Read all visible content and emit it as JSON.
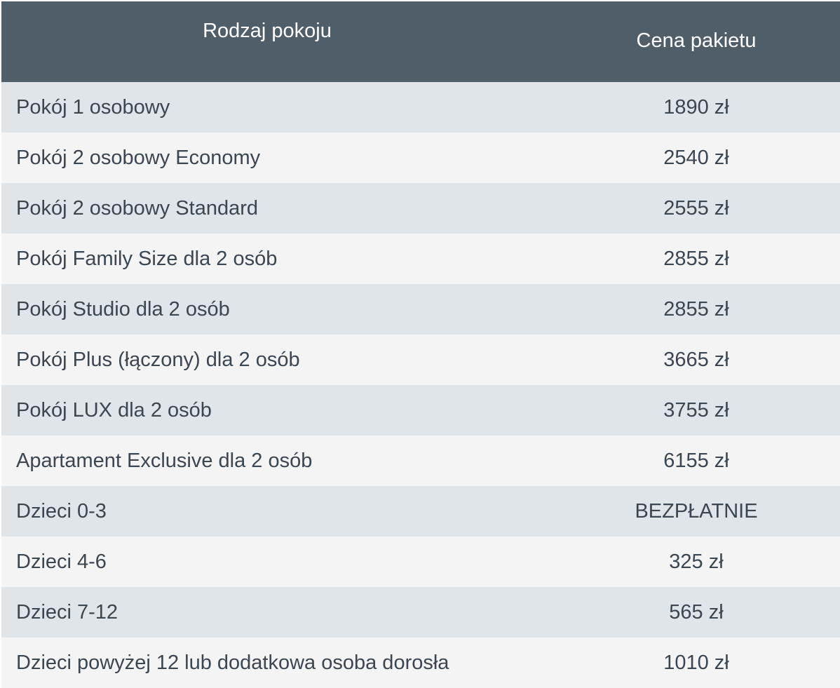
{
  "table": {
    "headers": {
      "room_type": "Rodzaj pokoju",
      "package_price": "Cena pakietu"
    },
    "rows": [
      {
        "name": "Pokój 1 osobowy",
        "price": "1890 zł"
      },
      {
        "name": "Pokój 2 osobowy Economy",
        "price": "2540 zł"
      },
      {
        "name": "Pokój 2 osobowy Standard",
        "price": "2555 zł"
      },
      {
        "name": "Pokój Family Size dla 2 osób",
        "price": "2855 zł"
      },
      {
        "name": "Pokój Studio dla 2 osób",
        "price": "2855 zł"
      },
      {
        "name": "Pokój Plus (łączony) dla 2 osób",
        "price": "3665 zł"
      },
      {
        "name": "Pokój LUX dla 2 osób",
        "price": "3755 zł"
      },
      {
        "name": "Apartament Exclusive dla 2 osób",
        "price": "6155 zł"
      },
      {
        "name": "Dzieci 0-3",
        "price": "BEZPŁATNIE"
      },
      {
        "name": "Dzieci 4-6",
        "price": "325 zł"
      },
      {
        "name": "Dzieci 7-12",
        "price": "565 zł"
      },
      {
        "name": "Dzieci powyżej 12 lub dodatkowa osoba dorosła",
        "price": "1010 zł"
      }
    ]
  },
  "colors": {
    "header_bg": "#505e6a",
    "row_odd_bg": "#dfe5e8",
    "row_even_bg": "#f4f4f4",
    "text": "#3c4650"
  }
}
